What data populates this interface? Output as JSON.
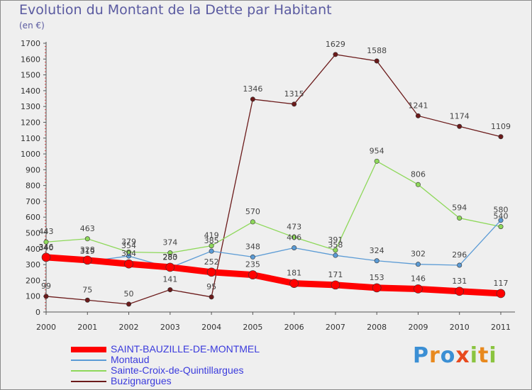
{
  "chart_data": {
    "type": "line",
    "title": "Evolution du Montant de la Dette par Habitant",
    "subtitle": "(en €)",
    "ylim": [
      0,
      1700
    ],
    "y_ticks": [
      0,
      100,
      200,
      300,
      400,
      500,
      600,
      700,
      800,
      900,
      1000,
      1100,
      1200,
      1300,
      1400,
      1500,
      1600,
      1700
    ],
    "categories": [
      "2000",
      "2001",
      "2002",
      "2003",
      "2004",
      "2005",
      "2006",
      "2007",
      "2008",
      "2009",
      "2010",
      "2011"
    ],
    "series": [
      {
        "name": "Buzignargues",
        "color": "#6b1a1a",
        "values": [
          99,
          75,
          50,
          141,
          95,
          1346,
          1315,
          1629,
          1588,
          1241,
          1174,
          1109
        ]
      },
      {
        "name": "Sainte-Croix-de-Quintillargues",
        "color": "#8ed85a",
        "values": [
          443,
          463,
          379,
          374,
          419,
          570,
          473,
          391,
          954,
          806,
          594,
          540
        ]
      },
      {
        "name": "Montaud",
        "color": "#5b9bd5",
        "values": [
          340,
          319,
          354,
          280,
          385,
          348,
          406,
          358,
          324,
          302,
          296,
          580
        ]
      },
      {
        "name": "SAINT-BAUZILLE-DE-MONTMEL",
        "color": "#ff0000",
        "values": [
          346,
          328,
          304,
          283,
          252,
          235,
          181,
          171,
          153,
          146,
          131,
          117
        ]
      }
    ],
    "legend": [
      "SAINT-BAUZILLE-DE-MONTMEL",
      "Montaud",
      "Sainte-Croix-de-Quintillargues",
      "Buzignargues"
    ]
  },
  "logo": {
    "letters": [
      "P",
      "r",
      "o",
      "x",
      "i",
      "t",
      "i"
    ],
    "colors": [
      "#3b8fd4",
      "#e8891e",
      "#3b8fd4",
      "#e84a1e",
      "#8ac43f",
      "#e8891e",
      "#8ac43f"
    ]
  }
}
